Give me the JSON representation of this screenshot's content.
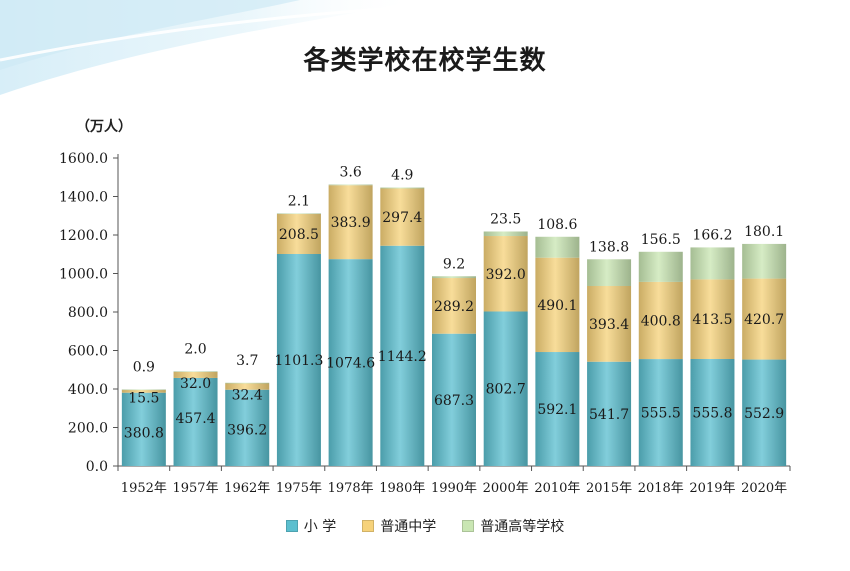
{
  "title": "各类学校在校学生数",
  "unit_label": "（万人）",
  "legend": [
    {
      "label": "小 学",
      "color": "#5bbfcf"
    },
    {
      "label": "普通中学",
      "color": "#f6d27a"
    },
    {
      "label": "普通高等学校",
      "color": "#c9e6b3"
    }
  ],
  "chart_data": {
    "type": "bar",
    "stacked": true,
    "title": "各类学校在校学生数",
    "ylabel": "（万人）",
    "ylim": [
      0,
      1600
    ],
    "yticks": [
      "0.0",
      "200.0",
      "400.0",
      "600.0",
      "800.0",
      "1000.0",
      "1200.0",
      "1400.0",
      "1600.0"
    ],
    "grid": false,
    "legend_position": "bottom",
    "categories": [
      "1952年",
      "1957年",
      "1962年",
      "1975年",
      "1978年",
      "1980年",
      "1990年",
      "2000年",
      "2010年",
      "2015年",
      "2018年",
      "2019年",
      "2020年"
    ],
    "series": [
      {
        "name": "小 学",
        "color": "#5bbfcf",
        "values": [
          380.8,
          457.4,
          396.2,
          1101.3,
          1074.6,
          1144.2,
          687.3,
          802.7,
          592.1,
          541.7,
          555.5,
          555.8,
          552.9
        ]
      },
      {
        "name": "普通中学",
        "color": "#f6d27a",
        "values": [
          15.5,
          32.0,
          32.4,
          208.5,
          383.9,
          297.4,
          289.2,
          392.0,
          490.1,
          393.4,
          400.8,
          413.5,
          420.7
        ]
      },
      {
        "name": "普通高等学校",
        "color": "#c9e6b3",
        "values": [
          0.9,
          2.0,
          3.7,
          2.1,
          3.6,
          4.9,
          9.2,
          23.5,
          108.6,
          138.8,
          156.5,
          166.2,
          180.1
        ]
      }
    ]
  }
}
